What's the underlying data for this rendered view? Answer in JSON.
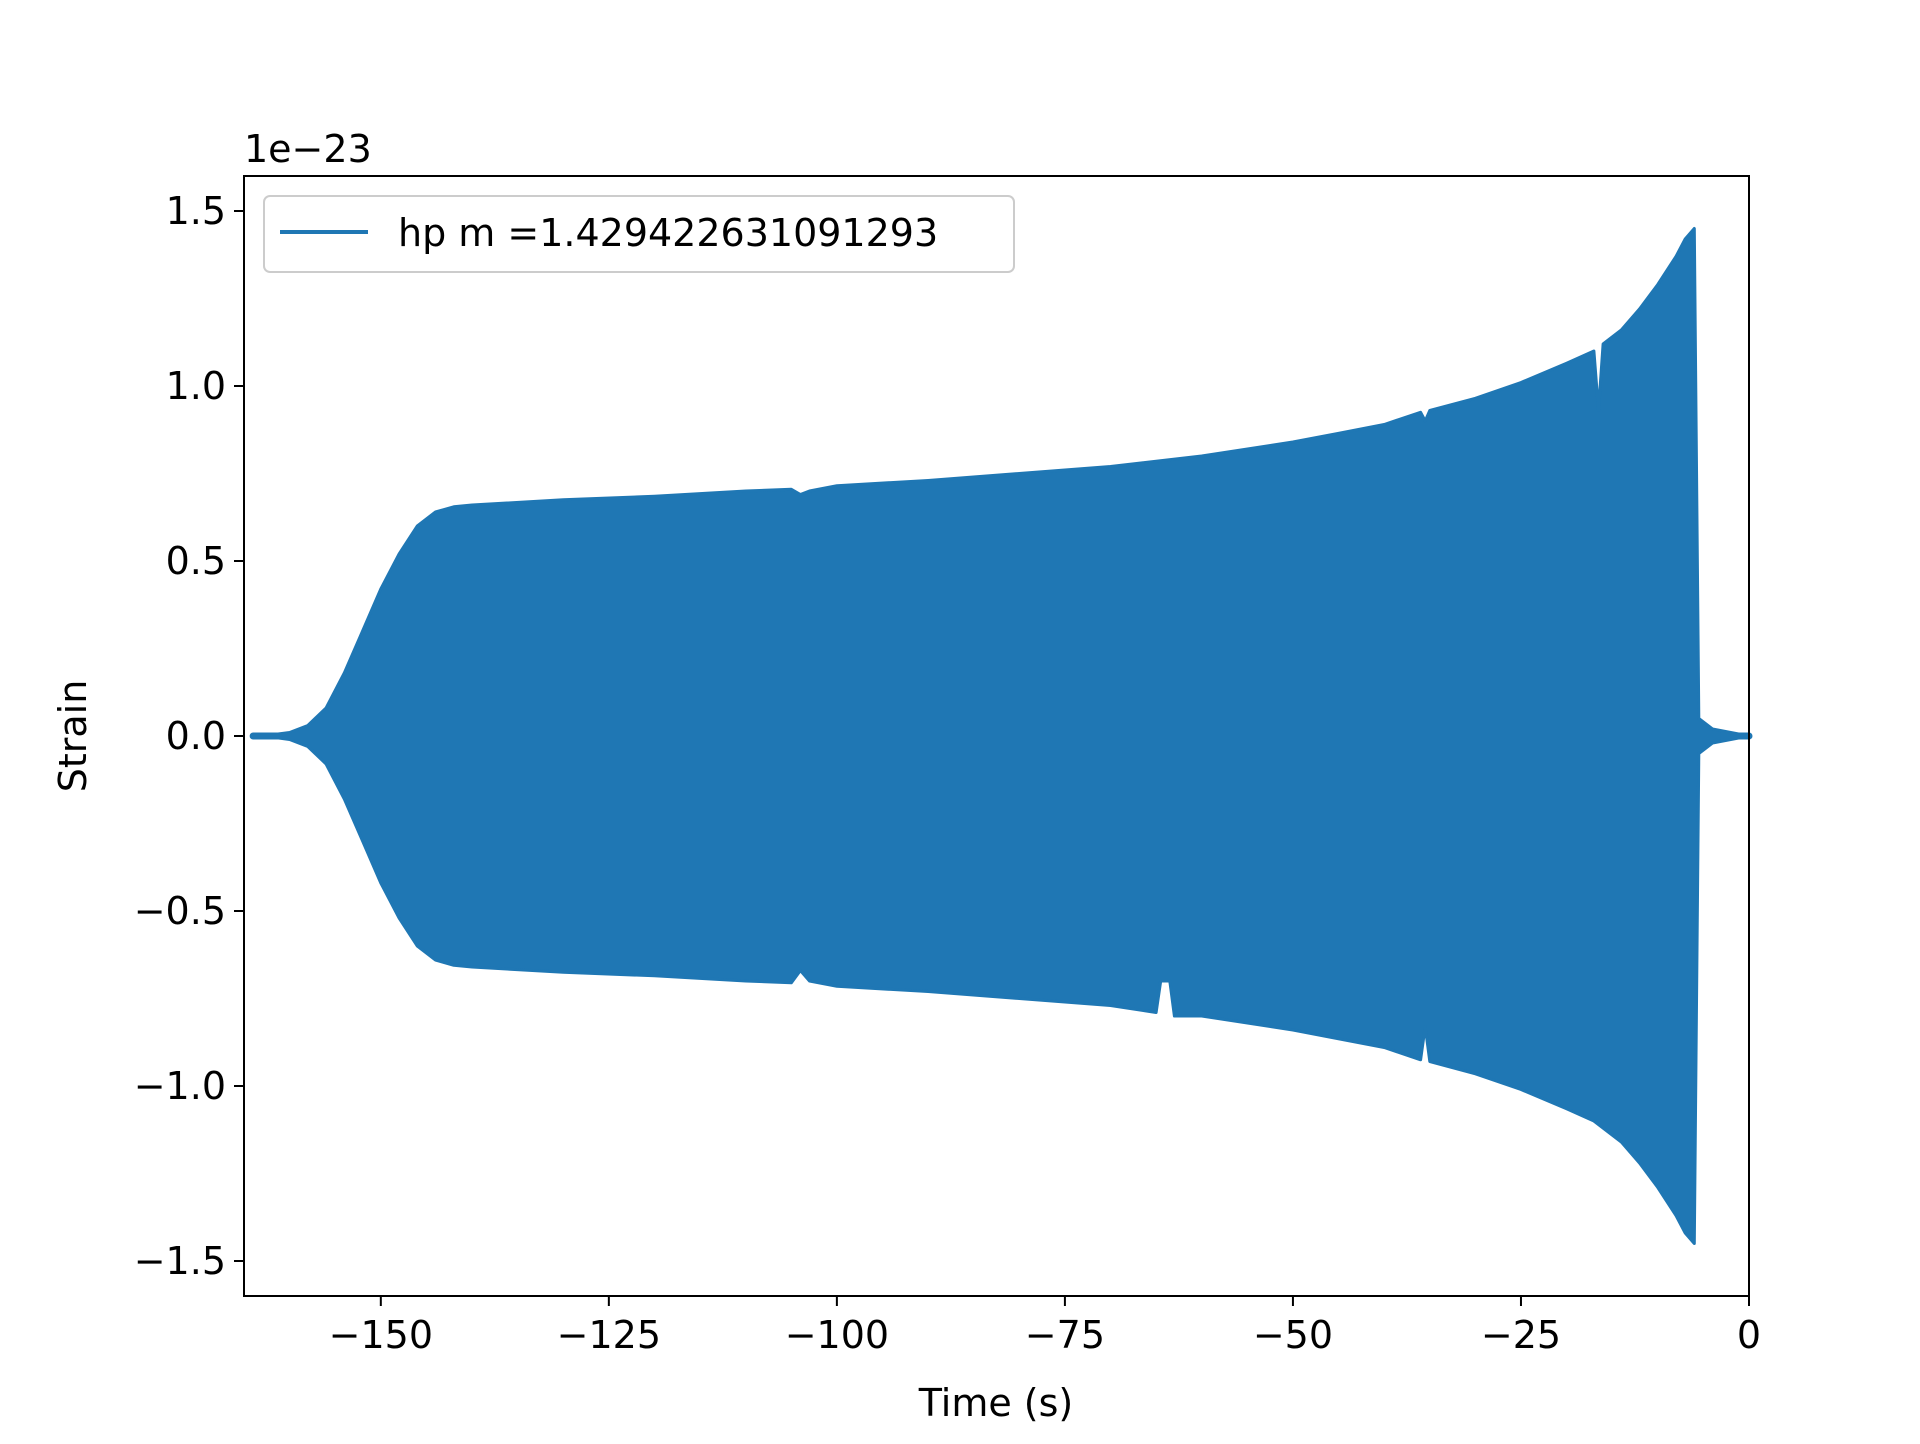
{
  "chart_data": {
    "type": "line",
    "title": "",
    "xlabel": "Time (s)",
    "ylabel": "Strain",
    "y_offset_label": "1e−23",
    "y_scale": 1e-23,
    "xlim": [
      -165,
      0
    ],
    "ylim": [
      -1.6e-23,
      1.6e-23
    ],
    "x_ticks": [
      {
        "value": -150,
        "label": "−150"
      },
      {
        "value": -125,
        "label": "−125"
      },
      {
        "value": -100,
        "label": "−100"
      },
      {
        "value": -75,
        "label": "−75"
      },
      {
        "value": -50,
        "label": "−50"
      },
      {
        "value": -25,
        "label": "−25"
      },
      {
        "value": 0,
        "label": "0"
      }
    ],
    "y_ticks": [
      {
        "value": 1.5e-23,
        "label": "1.5"
      },
      {
        "value": 1e-23,
        "label": "1.0"
      },
      {
        "value": 5e-24,
        "label": "0.5"
      },
      {
        "value": 0.0,
        "label": "0.0"
      },
      {
        "value": -5e-24,
        "label": "−0.5"
      },
      {
        "value": -1e-23,
        "label": "−1.0"
      },
      {
        "value": -1.5e-23,
        "label": "−1.5"
      }
    ],
    "grid": false,
    "legend_position": "top-left",
    "series": [
      {
        "name": "hp m =1.429422631091293",
        "color": "#1f77b4",
        "envelope_upper": [
          [
            -164,
            0.0
          ],
          [
            -162,
            3e-26
          ],
          [
            -160,
            1e-25
          ],
          [
            -158,
            3e-25
          ],
          [
            -156,
            8e-25
          ],
          [
            -154,
            1.8e-24
          ],
          [
            -152,
            3e-24
          ],
          [
            -150,
            4.2e-24
          ],
          [
            -148,
            5.2e-24
          ],
          [
            -146,
            6e-24
          ],
          [
            -144,
            6.4e-24
          ],
          [
            -142,
            6.55e-24
          ],
          [
            -140,
            6.6e-24
          ],
          [
            -130,
            6.75e-24
          ],
          [
            -120,
            6.85e-24
          ],
          [
            -110,
            7e-24
          ],
          [
            -105,
            7.05e-24
          ],
          [
            -104,
            6.9e-24
          ],
          [
            -103,
            7e-24
          ],
          [
            -100,
            7.15e-24
          ],
          [
            -90,
            7.3e-24
          ],
          [
            -80,
            7.5e-24
          ],
          [
            -70,
            7.7e-24
          ],
          [
            -60,
            8e-24
          ],
          [
            -50,
            8.4e-24
          ],
          [
            -45,
            8.65e-24
          ],
          [
            -40,
            8.9e-24
          ],
          [
            -36,
            9.25e-24
          ],
          [
            -35.5,
            9e-24
          ],
          [
            -35,
            9.3e-24
          ],
          [
            -30,
            9.65e-24
          ],
          [
            -25,
            1.01e-23
          ],
          [
            -20,
            1.065e-23
          ],
          [
            -17,
            1.1e-23
          ],
          [
            -16.5,
            9.3e-24
          ],
          [
            -16,
            1.12e-23
          ],
          [
            -14,
            1.16e-23
          ],
          [
            -12,
            1.22e-23
          ],
          [
            -10,
            1.29e-23
          ],
          [
            -8,
            1.37e-23
          ],
          [
            -7,
            1.42e-23
          ],
          [
            -6,
            1.45e-23
          ],
          [
            -5.5,
            5e-25
          ],
          [
            -4,
            2e-25
          ],
          [
            -2,
            1e-25
          ],
          [
            0,
            0.0
          ]
        ],
        "envelope_lower": [
          [
            -164,
            0.0
          ],
          [
            -162,
            -3e-26
          ],
          [
            -160,
            -1e-25
          ],
          [
            -158,
            -3e-25
          ],
          [
            -156,
            -8e-25
          ],
          [
            -154,
            -1.8e-24
          ],
          [
            -152,
            -3e-24
          ],
          [
            -150,
            -4.2e-24
          ],
          [
            -148,
            -5.2e-24
          ],
          [
            -146,
            -6e-24
          ],
          [
            -144,
            -6.4e-24
          ],
          [
            -142,
            -6.55e-24
          ],
          [
            -140,
            -6.6e-24
          ],
          [
            -130,
            -6.75e-24
          ],
          [
            -120,
            -6.85e-24
          ],
          [
            -110,
            -7e-24
          ],
          [
            -105,
            -7.05e-24
          ],
          [
            -104,
            -6.7e-24
          ],
          [
            -103,
            -7e-24
          ],
          [
            -100,
            -7.15e-24
          ],
          [
            -90,
            -7.3e-24
          ],
          [
            -80,
            -7.5e-24
          ],
          [
            -70,
            -7.7e-24
          ],
          [
            -65,
            -7.9e-24
          ],
          [
            -64.5,
            -7e-24
          ],
          [
            -63.5,
            -7e-24
          ],
          [
            -63,
            -8e-24
          ],
          [
            -60,
            -8e-24
          ],
          [
            -50,
            -8.4e-24
          ],
          [
            -45,
            -8.65e-24
          ],
          [
            -40,
            -8.9e-24
          ],
          [
            -36,
            -9.25e-24
          ],
          [
            -35.5,
            -8.3e-24
          ],
          [
            -35,
            -9.3e-24
          ],
          [
            -30,
            -9.65e-24
          ],
          [
            -25,
            -1.01e-23
          ],
          [
            -20,
            -1.065e-23
          ],
          [
            -17,
            -1.1e-23
          ],
          [
            -14,
            -1.16e-23
          ],
          [
            -12,
            -1.22e-23
          ],
          [
            -10,
            -1.29e-23
          ],
          [
            -8,
            -1.37e-23
          ],
          [
            -7,
            -1.42e-23
          ],
          [
            -6,
            -1.45e-23
          ],
          [
            -5.5,
            -5e-25
          ],
          [
            -4,
            -2e-25
          ],
          [
            -2,
            -1e-25
          ],
          [
            0,
            0.0
          ]
        ]
      }
    ]
  }
}
